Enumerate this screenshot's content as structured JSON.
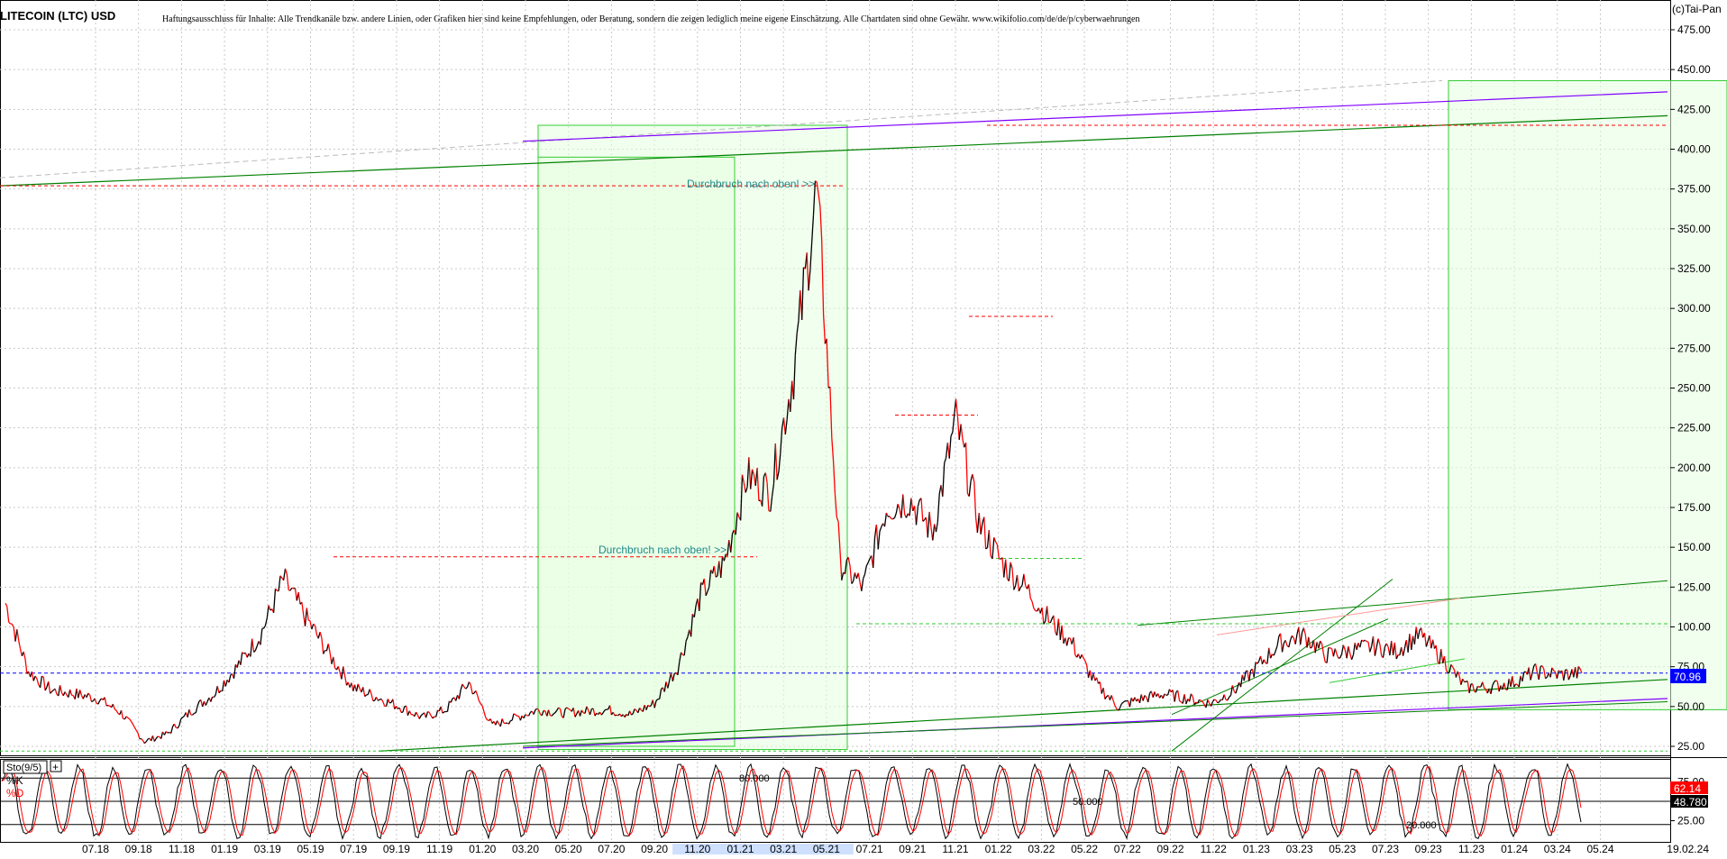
{
  "header": {
    "title": "LITECOIN (LTC) USD",
    "disclaimer": "Haftungsausschluss für Inhalte: Alle Trendkanäle bzw. andere Linien, oder Grafiken hier sind keine Empfehlungen, oder Beratung, sondern die zeigen lediglich meine eigene Einschätzung. Alle Chartdaten sind ohne Gewähr.  www.wikifolio.com/de/de/p/cyberwaehrungen",
    "brand": "(c)Tai-Pan"
  },
  "colors": {
    "price_up": "#000000",
    "price_down": "#ff0000",
    "trendline_green": "#008000",
    "channel_purple": "#8000ff",
    "zone_fill": "#e6ffe0",
    "zone_border": "#33cc33",
    "resistance_dash": "#ff0000",
    "current_price_line": "#0000ff",
    "current_price_badge": "#0000ff",
    "stoch_k_badge": "#ff0000"
  },
  "chart_data": [
    {
      "type": "line",
      "name": "price",
      "xlabel": "",
      "ylabel": "",
      "ylim": [
        20,
        485
      ],
      "y_ticks": [
        "475.00",
        "450.00",
        "425.00",
        "400.00",
        "375.00",
        "350.00",
        "325.00",
        "300.00",
        "275.00",
        "250.00",
        "225.00",
        "200.00",
        "175.00",
        "150.00",
        "125.00",
        "100.00",
        "75.00",
        "50.00",
        "25.00"
      ],
      "x_ticks": [
        "07.18",
        "09.18",
        "11.18",
        "01.19",
        "03.19",
        "05.19",
        "07.19",
        "09.19",
        "11.19",
        "01.20",
        "03.20",
        "05.20",
        "07.20",
        "09.20",
        "11.20",
        "01.21",
        "03.21",
        "05.21",
        "07.21",
        "09.21",
        "11.21",
        "01.22",
        "03.22",
        "05.22",
        "07.22",
        "09.22",
        "11.22",
        "01.23",
        "03.23",
        "05.23",
        "07.23",
        "09.23",
        "11.23",
        "01.24",
        "03.24",
        "05.24"
      ],
      "x_end_label": "19.02.24",
      "grid": true,
      "series": [
        {
          "x": [
            "06.18",
            "07.18",
            "08.18",
            "09.18",
            "10.18",
            "11.18",
            "12.18",
            "01.19",
            "02.19",
            "03.19",
            "04.19",
            "05.19",
            "06.19",
            "07.19",
            "08.19",
            "09.19",
            "10.19",
            "11.19",
            "12.19",
            "01.20",
            "02.20",
            "03.20",
            "04.20",
            "05.20",
            "06.20",
            "07.20",
            "08.20",
            "09.20",
            "10.20",
            "11.20",
            "12.20",
            "01.21",
            "02.21",
            "03.21",
            "04.21",
            "05.21",
            "06.21",
            "07.21",
            "08.21",
            "09.21",
            "10.21",
            "11.21",
            "12.21",
            "01.22",
            "02.22",
            "03.22",
            "04.22",
            "05.22",
            "06.22",
            "07.22",
            "08.22",
            "09.22",
            "10.22",
            "11.22",
            "12.22",
            "01.23",
            "02.23",
            "03.23",
            "04.23",
            "05.23",
            "06.23",
            "07.23",
            "08.23",
            "09.23",
            "10.23",
            "11.23",
            "12.23",
            "01.24",
            "02.24"
          ],
          "values": [
            115,
            72,
            60,
            58,
            55,
            46,
            28,
            33,
            47,
            58,
            75,
            95,
            130,
            105,
            82,
            62,
            56,
            50,
            43,
            48,
            65,
            38,
            43,
            48,
            46,
            47,
            48,
            45,
            52,
            75,
            120,
            140,
            195,
            185,
            260,
            375,
            140,
            125,
            175,
            180,
            160,
            230,
            165,
            140,
            125,
            105,
            90,
            65,
            50,
            55,
            58,
            55,
            52,
            60,
            75,
            90,
            95,
            82,
            85,
            88,
            85,
            95,
            80,
            62,
            62,
            65,
            72,
            70,
            71
          ]
        }
      ],
      "last_value_label": "70.96",
      "horizontal_lines": [
        {
          "value": 144,
          "style": "red-dashed"
        },
        {
          "value": 377,
          "style": "red-dashed"
        },
        {
          "value": 233,
          "style": "red-dashed"
        },
        {
          "value": 295,
          "style": "red-dashed"
        },
        {
          "value": 415,
          "style": "red-dashed"
        },
        {
          "value": 143,
          "style": "green-dashed"
        },
        {
          "value": 102,
          "style": "green-dashed"
        },
        {
          "value": 70.96,
          "style": "blue-dashed"
        }
      ],
      "annotations": [
        {
          "text": "Durchbruch nach oben! >>",
          "x": "03.21",
          "y": 385
        },
        {
          "text": "Durchbruch nach oben! >>",
          "x": "09.20",
          "y": 150
        }
      ]
    },
    {
      "type": "line",
      "name": "stochastic",
      "title": "Sto(9/5)",
      "legend": [
        "%K",
        "%D"
      ],
      "ylim": [
        0,
        100
      ],
      "levels": [
        "80.000",
        "50.000",
        "20.000"
      ],
      "y_ticks": [
        "75.00",
        "25.00"
      ],
      "last_values": {
        "k": "62.14",
        "d": "48.780"
      }
    }
  ]
}
